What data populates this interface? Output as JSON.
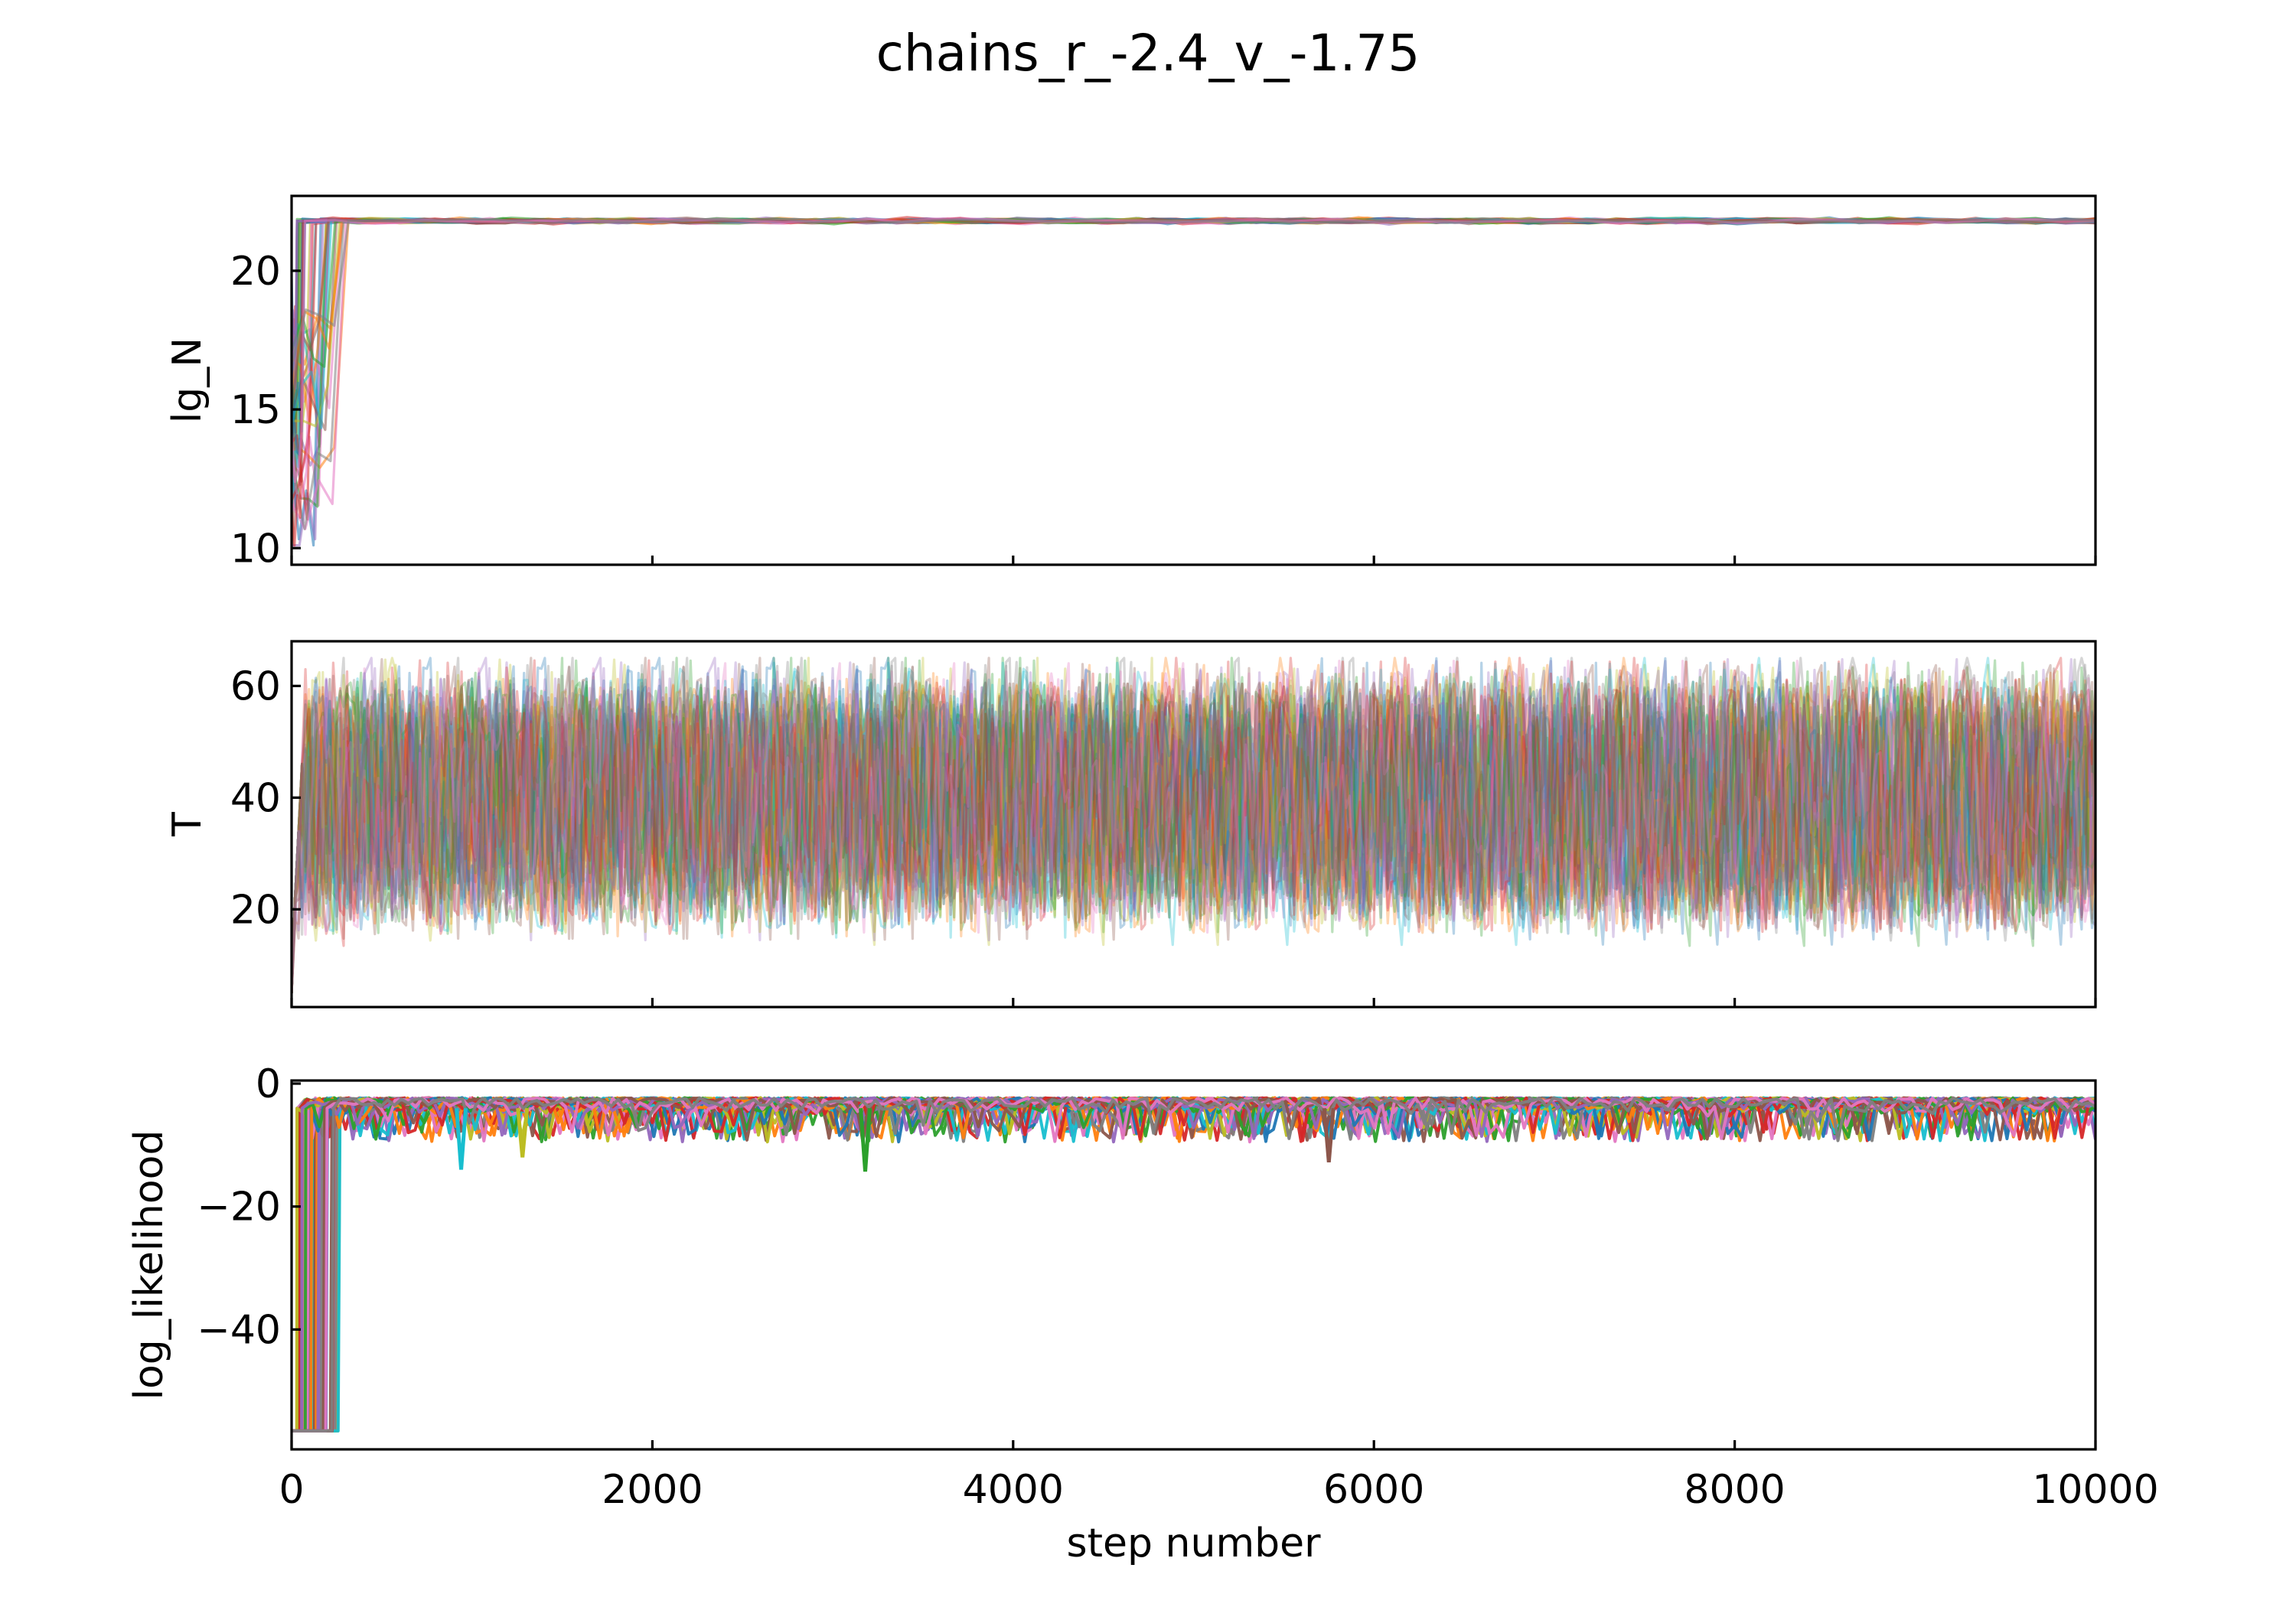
{
  "figure": {
    "title": "chains_r_-2.4_v_-1.75"
  },
  "chart_data": [
    {
      "type": "line",
      "ylabel": "lg_N",
      "xlim": [
        0,
        10000
      ],
      "ylim": [
        9.4,
        22.7
      ],
      "xticks": [
        0,
        2000,
        4000,
        6000,
        8000,
        10000
      ],
      "yticks": [
        10,
        15,
        20
      ],
      "show_xticklabels": false,
      "grid": false,
      "n_walkers": 48,
      "series_summary": {
        "burn_in_start_range": [
          10.1,
          17.5
        ],
        "burn_in_steps": [
          30,
          320
        ],
        "converged_value": 21.8,
        "converged_spread": 0.15
      }
    },
    {
      "type": "line",
      "ylabel": "T",
      "xlim": [
        0,
        10000
      ],
      "ylim": [
        2.5,
        68
      ],
      "xticks": [
        0,
        2000,
        4000,
        6000,
        8000,
        10000
      ],
      "yticks": [
        20,
        40,
        60
      ],
      "show_xticklabels": false,
      "grid": false,
      "n_walkers": 48,
      "series_summary": {
        "start_value": 5,
        "upper_bound": 65,
        "lower_dips": [
          10,
          18
        ],
        "mean": 40
      }
    },
    {
      "type": "line",
      "ylabel": "log_likelihood",
      "xlabel": "step number",
      "xlim": [
        0,
        10000
      ],
      "ylim": [
        -59.5,
        0.5
      ],
      "xticks": [
        0,
        2000,
        4000,
        6000,
        8000,
        10000
      ],
      "xticklabels": [
        "0",
        "2000",
        "4000",
        "6000",
        "8000",
        "10000"
      ],
      "yticks": [
        0,
        -20,
        -40
      ],
      "yticklabels": [
        "0",
        "−20",
        "−40"
      ],
      "grid": false,
      "n_walkers": 48,
      "series_summary": {
        "start_value": -56.5,
        "burn_in_steps": [
          30,
          300
        ],
        "converged_top": -2.3,
        "typical_low": -9,
        "outlier_dips": [
          {
            "step": 940,
            "value": -14
          },
          {
            "step": 3180,
            "value": -14.3
          },
          {
            "step": 5750,
            "value": -12.8
          },
          {
            "step": 1280,
            "value": -12
          }
        ]
      }
    }
  ],
  "palette": [
    "#1f77b4",
    "#ff7f0e",
    "#2ca02c",
    "#d62728",
    "#9467bd",
    "#8c564b",
    "#e377c2",
    "#7f7f7f",
    "#bcbd22",
    "#17becf"
  ]
}
